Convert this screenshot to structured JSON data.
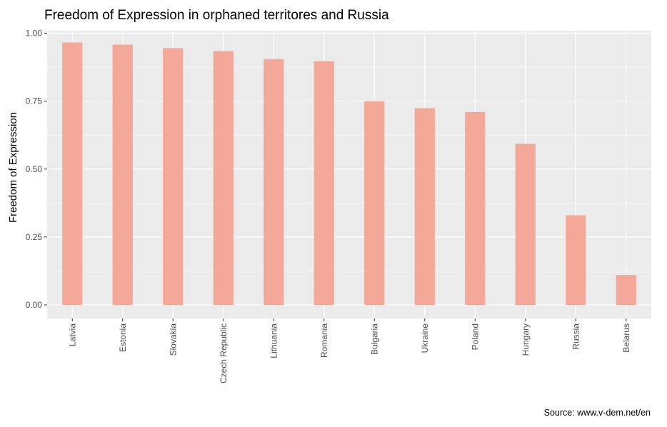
{
  "chart_data": {
    "type": "bar",
    "title": "Freedom of Expression in orphaned territores and Russia",
    "xlabel": "",
    "ylabel": "Freedom of Expression",
    "caption": "Source: www.v-dem.net/en",
    "categories": [
      "Latvia",
      "Estonia",
      "Slovakia",
      "Czech Republic",
      "Lithuania",
      "Romania",
      "Bulgaria",
      "Ukraine",
      "Poland",
      "Hungary",
      "Russia",
      "Belarus"
    ],
    "values": [
      0.966,
      0.958,
      0.945,
      0.934,
      0.905,
      0.897,
      0.75,
      0.724,
      0.71,
      0.593,
      0.33,
      0.11
    ],
    "ylim": [
      0,
      1.0
    ],
    "yticks": [
      "0.00",
      "0.25",
      "0.50",
      "0.75",
      "1.00"
    ],
    "grid": true,
    "colors": {
      "bar": "#f4a899",
      "panel": "#ebebeb",
      "grid": "#ffffff"
    }
  }
}
